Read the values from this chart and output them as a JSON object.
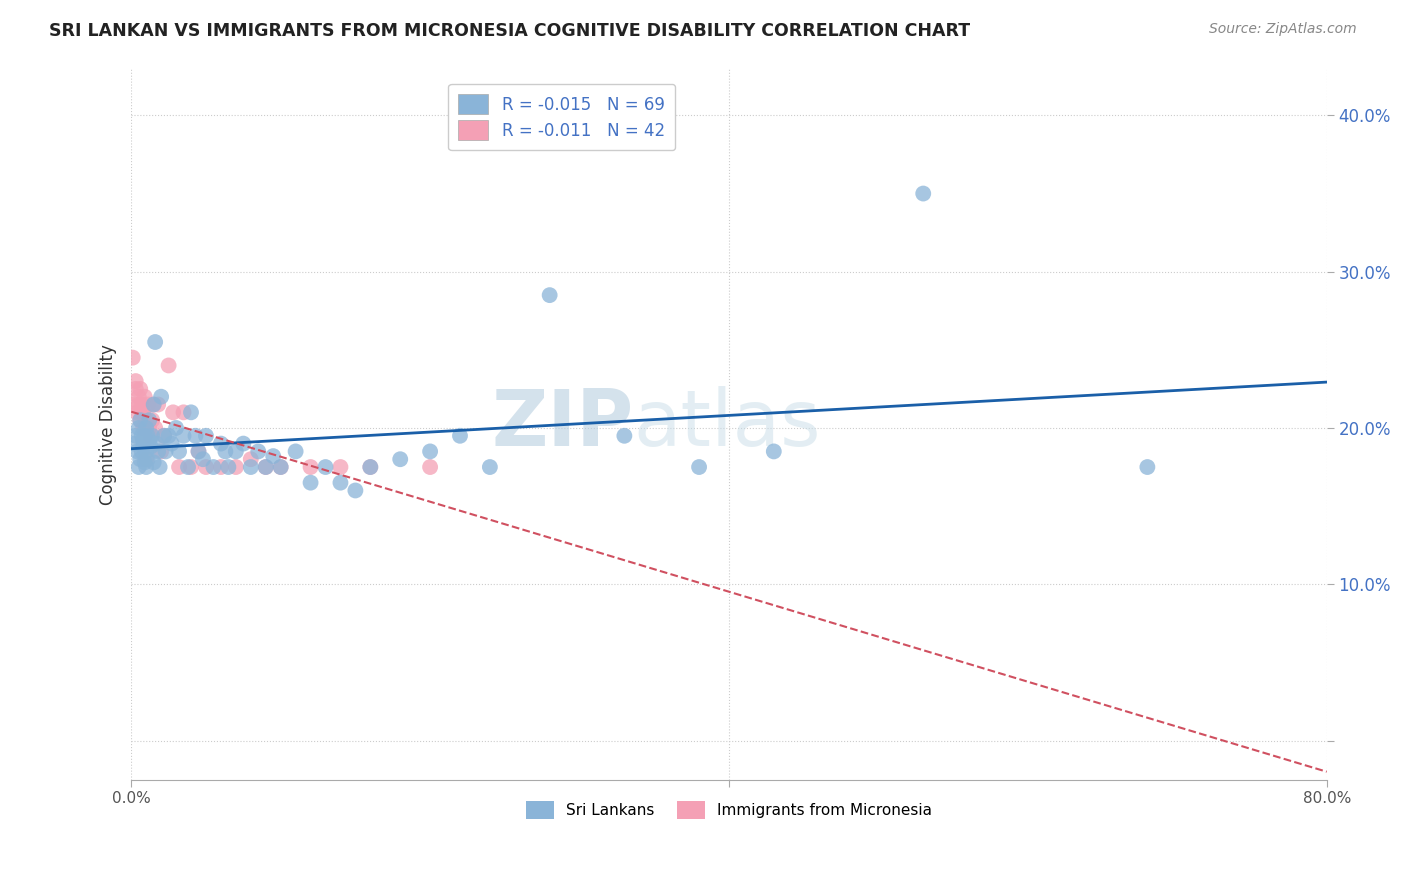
{
  "title": "SRI LANKAN VS IMMIGRANTS FROM MICRONESIA COGNITIVE DISABILITY CORRELATION CHART",
  "source": "Source: ZipAtlas.com",
  "ylabel": "Cognitive Disability",
  "yticks": [
    0.0,
    0.1,
    0.2,
    0.3,
    0.4
  ],
  "ytick_labels": [
    "",
    "10.0%",
    "20.0%",
    "30.0%",
    "40.0%"
  ],
  "xlim": [
    0.0,
    0.8
  ],
  "ylim": [
    -0.025,
    0.43
  ],
  "legend_label1": "Sri Lankans",
  "legend_label2": "Immigrants from Micronesia",
  "legend_R1": "R = -0.015",
  "legend_N1": "N = 69",
  "legend_R2": "R = -0.011",
  "legend_N2": "N = 42",
  "color_blue": "#8ab4d8",
  "color_pink": "#f4a0b5",
  "line_color_blue": "#1a5fa8",
  "line_color_pink": "#d05060",
  "watermark_zip": "ZIP",
  "watermark_atlas": "atlas",
  "sri_lankans_x": [
    0.002,
    0.003,
    0.004,
    0.005,
    0.005,
    0.006,
    0.006,
    0.007,
    0.007,
    0.008,
    0.008,
    0.009,
    0.009,
    0.01,
    0.01,
    0.01,
    0.011,
    0.011,
    0.012,
    0.012,
    0.013,
    0.014,
    0.015,
    0.015,
    0.016,
    0.017,
    0.018,
    0.019,
    0.02,
    0.022,
    0.023,
    0.025,
    0.027,
    0.03,
    0.032,
    0.035,
    0.038,
    0.04,
    0.043,
    0.045,
    0.048,
    0.05,
    0.055,
    0.06,
    0.063,
    0.065,
    0.07,
    0.075,
    0.08,
    0.085,
    0.09,
    0.095,
    0.1,
    0.11,
    0.12,
    0.13,
    0.14,
    0.15,
    0.16,
    0.18,
    0.2,
    0.22,
    0.24,
    0.28,
    0.33,
    0.38,
    0.43,
    0.53,
    0.68
  ],
  "sri_lankans_y": [
    0.19,
    0.195,
    0.185,
    0.2,
    0.175,
    0.205,
    0.18,
    0.195,
    0.185,
    0.192,
    0.188,
    0.195,
    0.178,
    0.2,
    0.185,
    0.175,
    0.195,
    0.18,
    0.205,
    0.192,
    0.188,
    0.195,
    0.215,
    0.178,
    0.255,
    0.19,
    0.185,
    0.175,
    0.22,
    0.195,
    0.185,
    0.195,
    0.19,
    0.2,
    0.185,
    0.195,
    0.175,
    0.21,
    0.195,
    0.185,
    0.18,
    0.195,
    0.175,
    0.19,
    0.185,
    0.175,
    0.185,
    0.19,
    0.175,
    0.185,
    0.175,
    0.182,
    0.175,
    0.185,
    0.165,
    0.175,
    0.165,
    0.16,
    0.175,
    0.18,
    0.185,
    0.195,
    0.175,
    0.285,
    0.195,
    0.175,
    0.185,
    0.35,
    0.175
  ],
  "micronesia_x": [
    0.001,
    0.002,
    0.003,
    0.003,
    0.004,
    0.005,
    0.005,
    0.006,
    0.006,
    0.007,
    0.007,
    0.008,
    0.008,
    0.009,
    0.009,
    0.01,
    0.01,
    0.011,
    0.012,
    0.013,
    0.014,
    0.015,
    0.016,
    0.018,
    0.02,
    0.022,
    0.025,
    0.028,
    0.032,
    0.035,
    0.04,
    0.045,
    0.05,
    0.06,
    0.07,
    0.08,
    0.09,
    0.1,
    0.12,
    0.14,
    0.16,
    0.2
  ],
  "micronesia_y": [
    0.245,
    0.215,
    0.23,
    0.225,
    0.21,
    0.22,
    0.215,
    0.205,
    0.225,
    0.21,
    0.215,
    0.2,
    0.21,
    0.22,
    0.195,
    0.205,
    0.18,
    0.215,
    0.2,
    0.195,
    0.205,
    0.215,
    0.2,
    0.215,
    0.185,
    0.195,
    0.24,
    0.21,
    0.175,
    0.21,
    0.175,
    0.185,
    0.175,
    0.175,
    0.175,
    0.18,
    0.175,
    0.175,
    0.175,
    0.175,
    0.175,
    0.175
  ]
}
